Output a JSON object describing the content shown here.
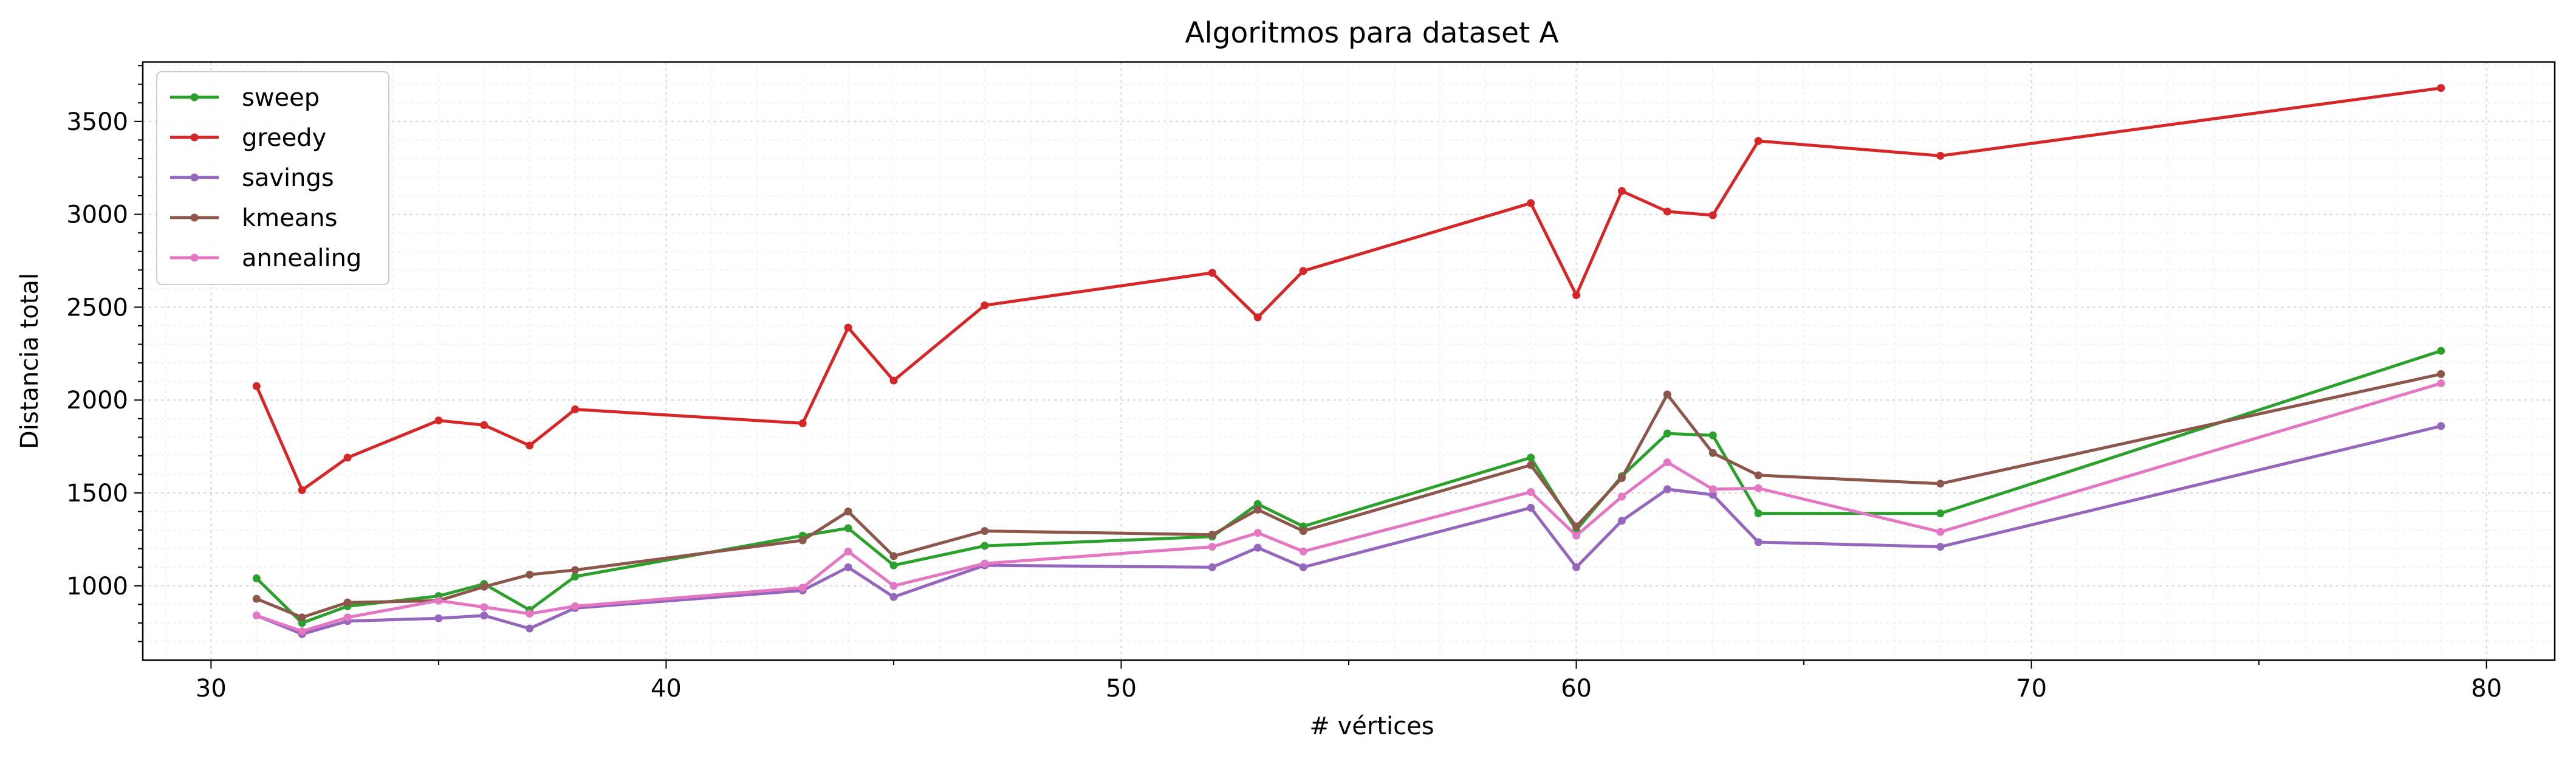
{
  "chart_data": {
    "type": "line",
    "title": "Algoritmos para dataset A",
    "xlabel": "# vértices",
    "ylabel": "Distancia total",
    "xlim": [
      28.5,
      81.5
    ],
    "ylim": [
      600,
      3820
    ],
    "xticks": [
      30,
      40,
      50,
      60,
      70,
      80
    ],
    "yticks": [
      1000,
      1500,
      2000,
      2500,
      3000,
      3500
    ],
    "grid": true,
    "legend_position": "top-left",
    "x": [
      31,
      32,
      33,
      35,
      36,
      37,
      38,
      43,
      44,
      45,
      47,
      52,
      53,
      54,
      59,
      60,
      61,
      62,
      63,
      64,
      68,
      79
    ],
    "series": [
      {
        "name": "sweep",
        "color": "#2ca02c",
        "values": [
          1040,
          800,
          890,
          945,
          1010,
          870,
          1050,
          1270,
          1310,
          1110,
          1215,
          1265,
          1440,
          1320,
          1690,
          1300,
          1590,
          1820,
          1810,
          1390,
          1390,
          2265
        ]
      },
      {
        "name": "greedy",
        "color": "#d62728",
        "values": [
          2075,
          1515,
          1690,
          1890,
          1865,
          1755,
          1950,
          1875,
          2390,
          2105,
          2510,
          2685,
          2445,
          2695,
          3060,
          2565,
          3125,
          3015,
          2995,
          3395,
          3315,
          3680
        ]
      },
      {
        "name": "savings",
        "color": "#9467bd",
        "values": [
          840,
          740,
          810,
          825,
          840,
          770,
          880,
          975,
          1100,
          940,
          1110,
          1100,
          1205,
          1100,
          1420,
          1100,
          1350,
          1520,
          1490,
          1235,
          1210,
          1860
        ]
      },
      {
        "name": "kmeans",
        "color": "#8c564b",
        "values": [
          930,
          830,
          910,
          920,
          995,
          1060,
          1085,
          1245,
          1400,
          1160,
          1295,
          1275,
          1410,
          1295,
          1650,
          1320,
          1580,
          2030,
          1715,
          1595,
          1550,
          2140
        ]
      },
      {
        "name": "annealing",
        "color": "#e377c2",
        "values": [
          840,
          755,
          830,
          920,
          885,
          850,
          890,
          990,
          1185,
          1000,
          1120,
          1210,
          1285,
          1185,
          1505,
          1270,
          1480,
          1665,
          1520,
          1525,
          1290,
          2090
        ]
      }
    ]
  }
}
